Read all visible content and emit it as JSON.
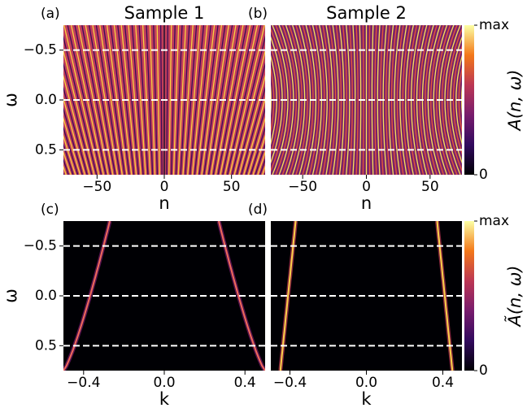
{
  "chart_data": [
    {
      "type": "heatmap",
      "panel_label": "(a)",
      "title": "Sample 1",
      "xlabel": "n",
      "ylabel": "ω",
      "xlim": [
        -75,
        75
      ],
      "ylim": [
        -0.75,
        0.75
      ],
      "invert_y": true,
      "xticks": [
        {
          "value": -50,
          "label": "−50"
        },
        0,
        50
      ],
      "yticks": [
        {
          "value": -0.5,
          "label": "−0.5"
        },
        {
          "value": 0,
          "label": "0.0"
        },
        0.5
      ],
      "hlines": [
        -0.5,
        0,
        0.5
      ],
      "cmap": "inferno"
    },
    {
      "type": "heatmap",
      "panel_label": "(b)",
      "title": "Sample 2",
      "xlabel": "n",
      "xlim": [
        -75,
        75
      ],
      "ylim": [
        -0.75,
        0.75
      ],
      "invert_y": true,
      "xticks": [
        {
          "value": -50,
          "label": "−50"
        },
        0,
        50
      ],
      "hlines": [
        -0.5,
        0,
        0.5
      ],
      "cmap": "inferno"
    },
    {
      "type": "heatmap",
      "panel_label": "(c)",
      "xlabel": "k",
      "ylabel": "ω",
      "xlim": [
        -0.5,
        0.5
      ],
      "ylim": [
        -0.75,
        0.75
      ],
      "invert_y": true,
      "xticks": [
        {
          "value": -0.4,
          "label": "−0.4"
        },
        {
          "value": 0,
          "label": "0.0"
        },
        0.4
      ],
      "yticks": [
        {
          "value": -0.5,
          "label": "−0.5"
        },
        {
          "value": 0,
          "label": "0.0"
        },
        0.5
      ],
      "hlines": [
        -0.5,
        0,
        0.5
      ],
      "cmap": "inferno"
    },
    {
      "type": "heatmap",
      "panel_label": "(d)",
      "xlabel": "k",
      "xlim": [
        -0.5,
        0.5
      ],
      "ylim": [
        -0.75,
        0.75
      ],
      "invert_y": true,
      "xticks": [
        {
          "value": -0.4,
          "label": "−0.4"
        },
        {
          "value": 0,
          "label": "0.0"
        },
        0.4
      ],
      "hlines": [
        -0.5,
        0,
        0.5
      ],
      "cmap": "inferno"
    },
    {
      "type": "colorbar",
      "label": "A(n, ω)",
      "clim": [
        0,
        1
      ],
      "ticks": [
        0,
        {
          "value": 1,
          "label": "max"
        }
      ],
      "cmap": "inferno"
    },
    {
      "type": "colorbar",
      "label": "Ã(n, ω)",
      "clim": [
        0,
        1
      ],
      "ticks": [
        0,
        {
          "value": 1,
          "label": "max"
        }
      ],
      "cmap": "inferno"
    }
  ]
}
